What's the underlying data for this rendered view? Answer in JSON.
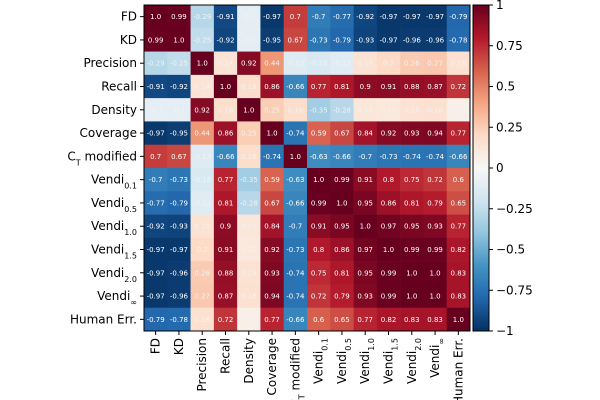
{
  "chart_data": {
    "type": "heatmap",
    "title": "",
    "labels": [
      "FD",
      "KD",
      "Precision",
      "Recall",
      "Density",
      "Coverage",
      "CT modified",
      "Vendi0.1",
      "Vendi0.5",
      "Vendi1.0",
      "Vendi1.5",
      "Vendi2.0",
      "Vendi∞",
      "Human Err."
    ],
    "labels_display": [
      {
        "base": "FD",
        "sub": ""
      },
      {
        "base": "KD",
        "sub": ""
      },
      {
        "base": "Precision",
        "sub": ""
      },
      {
        "base": "Recall",
        "sub": ""
      },
      {
        "base": "Density",
        "sub": ""
      },
      {
        "base": "Coverage",
        "sub": ""
      },
      {
        "base": "C",
        "sub": "T",
        "tail": " modified"
      },
      {
        "base": "Vendi",
        "sub": "0.1"
      },
      {
        "base": "Vendi",
        "sub": "0.5"
      },
      {
        "base": "Vendi",
        "sub": "1.0"
      },
      {
        "base": "Vendi",
        "sub": "1.5"
      },
      {
        "base": "Vendi",
        "sub": "2.0"
      },
      {
        "base": "Vendi",
        "sub": "∞"
      },
      {
        "base": "Human Err.",
        "sub": ""
      }
    ],
    "values": [
      [
        1.0,
        0.99,
        -0.29,
        -0.91,
        -0.1,
        -0.97,
        0.7,
        -0.7,
        -0.77,
        -0.92,
        -0.97,
        -0.97,
        -0.97,
        -0.79
      ],
      [
        0.99,
        1.0,
        -0.25,
        -0.92,
        -0.1,
        -0.95,
        0.67,
        -0.73,
        -0.79,
        -0.93,
        -0.97,
        -0.96,
        -0.96,
        -0.78
      ],
      [
        -0.29,
        -0.25,
        1.0,
        0.14,
        0.92,
        0.44,
        -0.13,
        -0.16,
        -0.12,
        0.15,
        0.2,
        0.26,
        0.27,
        0.16
      ],
      [
        -0.91,
        -0.92,
        0.14,
        1.0,
        0.18,
        0.86,
        -0.66,
        0.77,
        0.81,
        0.9,
        0.91,
        0.88,
        0.87,
        0.72
      ],
      [
        -0.1,
        -0.1,
        0.92,
        0.18,
        1.0,
        0.25,
        0.18,
        -0.35,
        -0.28,
        0.12,
        0.11,
        0.15,
        0.16,
        0.06
      ],
      [
        -0.97,
        -0.95,
        0.44,
        0.86,
        0.25,
        1.0,
        -0.74,
        0.59,
        0.67,
        0.84,
        0.92,
        0.93,
        0.94,
        0.77
      ],
      [
        0.7,
        0.67,
        -0.13,
        -0.66,
        0.18,
        -0.74,
        1.0,
        -0.63,
        -0.66,
        -0.7,
        -0.73,
        -0.74,
        -0.74,
        -0.66
      ],
      [
        -0.7,
        -0.73,
        -0.16,
        0.77,
        -0.35,
        0.59,
        -0.63,
        1.0,
        0.99,
        0.91,
        0.8,
        0.75,
        0.72,
        0.6
      ],
      [
        -0.77,
        -0.79,
        -0.12,
        0.81,
        -0.28,
        0.67,
        -0.66,
        0.99,
        1.0,
        0.95,
        0.86,
        0.81,
        0.79,
        0.65
      ],
      [
        -0.92,
        -0.93,
        0.15,
        0.9,
        0.12,
        0.84,
        -0.7,
        0.91,
        0.95,
        1.0,
        0.97,
        0.95,
        0.93,
        0.77
      ],
      [
        -0.97,
        -0.97,
        0.2,
        0.91,
        0.11,
        0.92,
        -0.73,
        0.8,
        0.86,
        0.97,
        1.0,
        0.99,
        0.99,
        0.82
      ],
      [
        -0.97,
        -0.96,
        0.26,
        0.88,
        0.15,
        0.93,
        -0.74,
        0.75,
        0.81,
        0.95,
        0.99,
        1.0,
        1.0,
        0.83
      ],
      [
        -0.97,
        -0.96,
        0.27,
        0.87,
        0.16,
        0.94,
        -0.74,
        0.72,
        0.79,
        0.93,
        0.99,
        1.0,
        1.0,
        0.83
      ],
      [
        -0.79,
        -0.78,
        0.16,
        0.72,
        0.06,
        0.77,
        -0.66,
        0.6,
        0.65,
        0.77,
        0.82,
        0.83,
        0.83,
        1.0
      ]
    ],
    "colorbar": {
      "min": -1,
      "max": 1,
      "ticks": [
        1,
        0.75,
        0.5,
        0.25,
        0,
        -0.25,
        -0.5,
        -0.75,
        -1
      ],
      "tick_labels": [
        "1",
        "0.75",
        "0.5",
        "0.25",
        "0",
        "−0.25",
        "−0.5",
        "−0.75",
        "−1"
      ],
      "colormap": "RdBu_r"
    }
  }
}
